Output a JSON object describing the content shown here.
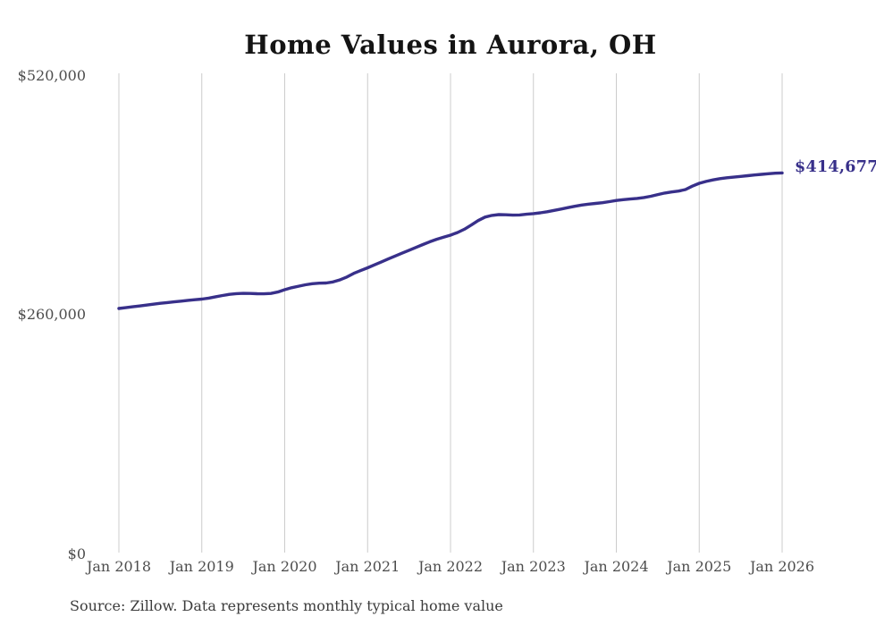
{
  "title": "Home Values in Aurora, OH",
  "source_note": "Source: Zillow. Data represents monthly typical home value",
  "colors": {
    "line": "#38308a",
    "grid": "#cccccc",
    "axis_text": "#4d4d4d",
    "title_text": "#141414",
    "background": "#ffffff"
  },
  "chart_data": {
    "type": "line",
    "title": "Home Values in Aurora, OH",
    "xlabel": "",
    "ylabel": "",
    "x_start": "Jan 2018",
    "x_end": "Jan 2026",
    "interval": "monthly",
    "x_tick_labels": [
      "Jan 2018",
      "Jan 2019",
      "Jan 2020",
      "Jan 2021",
      "Jan 2022",
      "Jan 2023",
      "Jan 2024",
      "Jan 2025",
      "Jan 2026"
    ],
    "y_tick_labels": [
      "$520,000",
      "$260,000",
      "$0"
    ],
    "ylim": [
      0,
      520000
    ],
    "grid": "vertical-only",
    "legend": "none",
    "end_label": "$414,677",
    "final_value": 414677,
    "series": [
      {
        "name": "Typical home value",
        "values": [
          267300,
          268200,
          269100,
          270000,
          271000,
          272000,
          272900,
          273700,
          274500,
          275300,
          276100,
          276800,
          277500,
          278600,
          280000,
          281400,
          282600,
          283400,
          283700,
          283600,
          283300,
          283200,
          283600,
          285200,
          287700,
          289800,
          291500,
          293000,
          294200,
          294800,
          295000,
          296200,
          298400,
          301500,
          305500,
          308500,
          311500,
          314700,
          317900,
          321100,
          324300,
          327500,
          330600,
          333700,
          336800,
          339800,
          342500,
          344800,
          347000,
          349800,
          353400,
          358000,
          362800,
          366600,
          368500,
          369300,
          369200,
          368800,
          369000,
          369700,
          370400,
          371300,
          372500,
          373900,
          375400,
          376900,
          378400,
          379700,
          380700,
          381500,
          382300,
          383400,
          384700,
          385600,
          386300,
          386900,
          387900,
          389300,
          391100,
          392800,
          393900,
          394900,
          396600,
          400300,
          403400,
          405400,
          407100,
          408400,
          409400,
          410100,
          410800,
          411600,
          412400,
          413100,
          413800,
          414300,
          414677
        ]
      }
    ]
  }
}
